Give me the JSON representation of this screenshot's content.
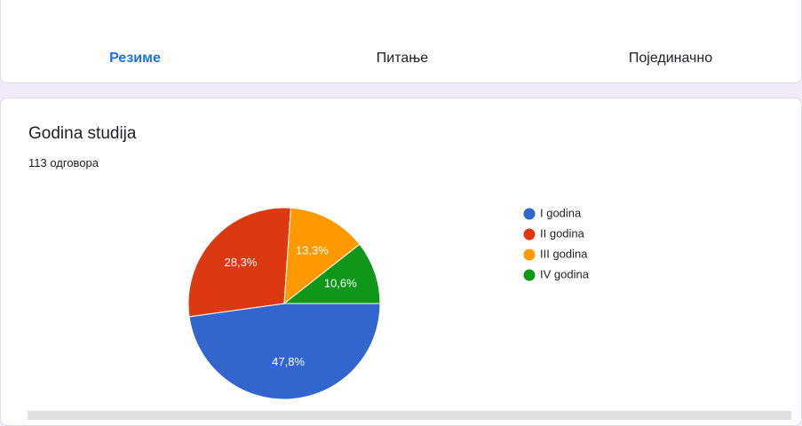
{
  "tabs": [
    "Резиме",
    "Питање",
    "Појединачно"
  ],
  "card": {
    "title": "Godina studija",
    "responses": "113 одговора"
  },
  "chart_data": {
    "type": "pie",
    "categories": [
      "I godina",
      "II godina",
      "III godina",
      "IV godina"
    ],
    "values": [
      47.8,
      28.3,
      13.3,
      10.6
    ],
    "value_labels": [
      "47,8%",
      "28,3%",
      "13,3%",
      "10,6%"
    ],
    "colors": [
      "#3366cc",
      "#dc3912",
      "#ff9900",
      "#109618"
    ],
    "legend": "right"
  }
}
